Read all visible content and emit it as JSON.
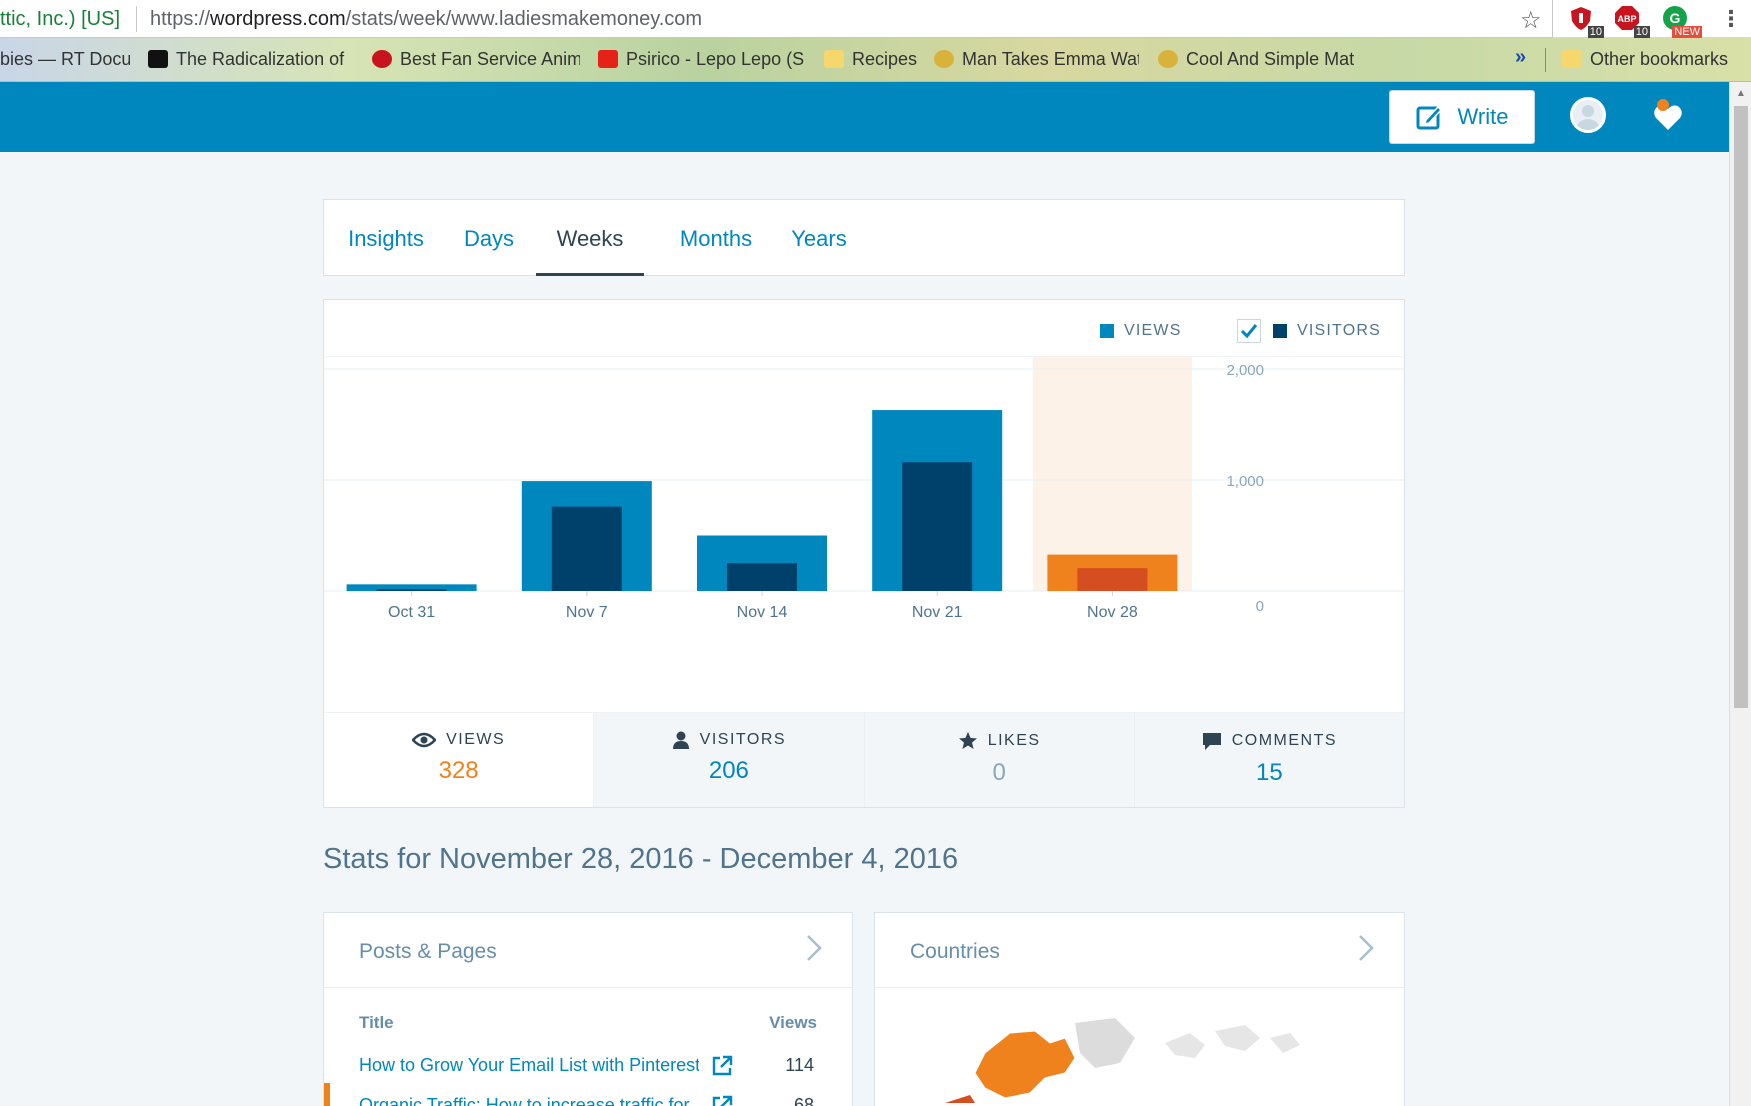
{
  "browser": {
    "url_org": "ttic, Inc.) [US]",
    "url_scheme": "https://",
    "url_domain": "wordpress.com",
    "url_path": "/stats/week/www.ladiesmakemoney.com",
    "extensions": [
      {
        "name": "ublock",
        "badge": "10",
        "color": "#c8141e"
      },
      {
        "name": "abp",
        "badge": "10",
        "color": "#c8141e"
      },
      {
        "name": "grammarly",
        "badge": "NEW",
        "color": "#15a34a"
      }
    ],
    "bookmarks": [
      {
        "label": "bies — RT Docu",
        "color": "#d0d0d0"
      },
      {
        "label": "The Radicalization of",
        "color": "#111111"
      },
      {
        "label": "Best Fan Service Anim",
        "color": "#c8141e"
      },
      {
        "label": "Psirico - Lepo Lepo (S",
        "color": "#e62117"
      },
      {
        "label": "Recipes",
        "color": "#f5d76e"
      },
      {
        "label": "Man Takes Emma Wat",
        "color": "#d9b23c"
      },
      {
        "label": "Cool And Simple Mat",
        "color": "#d9b23c"
      }
    ],
    "more": "»",
    "other_bookmarks": "Other bookmarks"
  },
  "masterbar": {
    "write_label": "Write"
  },
  "tabs": [
    "Insights",
    "Days",
    "Weeks",
    "Months",
    "Years"
  ],
  "active_tab": "Weeks",
  "legend": {
    "views": "VIEWS",
    "visitors": "VISITORS",
    "visitors_checked": true
  },
  "colors": {
    "views": "#0087be",
    "visitors": "#00416c",
    "highlight_views": "#f0821e",
    "highlight_visitors": "#d54e21",
    "highlight_bg": "#fdf2e8"
  },
  "chart_data": {
    "type": "bar",
    "categories": [
      "Oct 31",
      "Nov 7",
      "Nov 14",
      "Nov 21",
      "Nov 28"
    ],
    "series": [
      {
        "name": "VIEWS",
        "values": [
          60,
          990,
          500,
          1630,
          328
        ]
      },
      {
        "name": "VISITORS",
        "values": [
          15,
          760,
          250,
          1160,
          206
        ]
      }
    ],
    "highlighted_category": "Nov 28",
    "y_ticks": [
      "2,000",
      "1,000",
      "0"
    ],
    "ylim": [
      0,
      2000
    ],
    "grid": true
  },
  "summary": [
    {
      "label": "VIEWS",
      "value": "328",
      "icon": "eye-icon"
    },
    {
      "label": "VISITORS",
      "value": "206",
      "icon": "person-icon"
    },
    {
      "label": "LIKES",
      "value": "0",
      "icon": "star-icon"
    },
    {
      "label": "COMMENTS",
      "value": "15",
      "icon": "comment-icon"
    }
  ],
  "stats_heading": "Stats for November 28, 2016 - December 4, 2016",
  "posts_module": {
    "title": "Posts & Pages",
    "col_title": "Title",
    "col_views": "Views",
    "rows": [
      {
        "title": "How to Grow Your Email List with Pinterest",
        "views": "114"
      },
      {
        "title": "Organic Traffic: How to increase traffic for",
        "views": "68"
      }
    ]
  },
  "countries_module": {
    "title": "Countries"
  }
}
